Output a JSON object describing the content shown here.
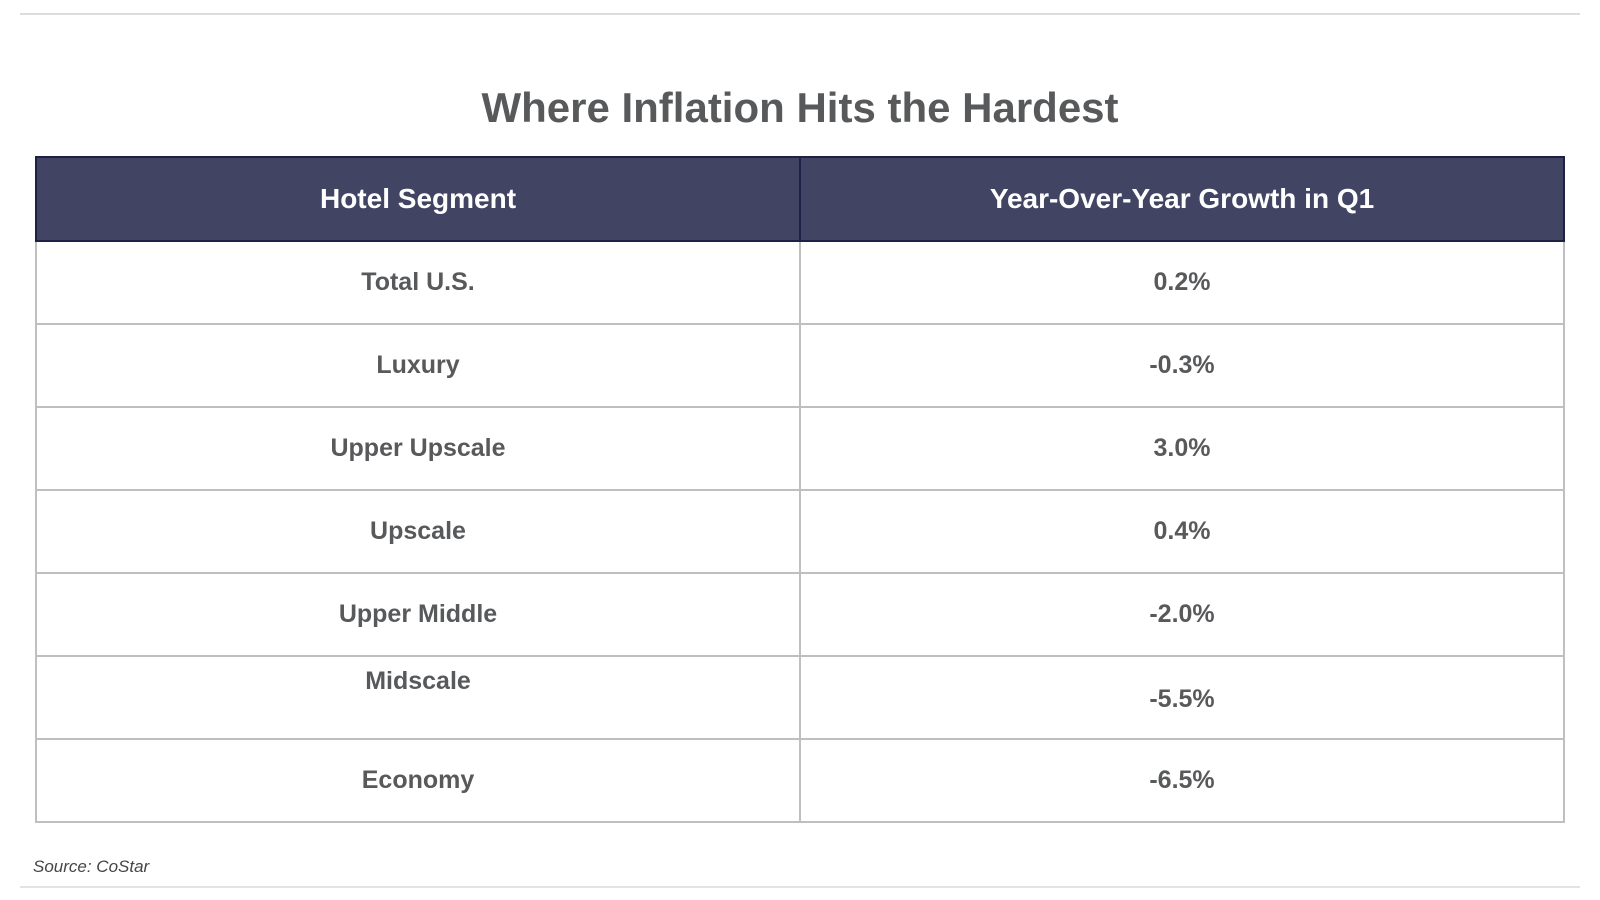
{
  "page": {
    "title": "Where Inflation Hits the Hardest",
    "source": "Source: CoStar"
  },
  "table": {
    "headers": [
      "Hotel Segment",
      "Year-Over-Year Growth in Q1"
    ],
    "rows": [
      {
        "segment": "Total U.S.",
        "growth": "0.2%"
      },
      {
        "segment": "Luxury",
        "growth": "-0.3%"
      },
      {
        "segment": "Upper Upscale",
        "growth": "3.0%"
      },
      {
        "segment": "Upscale",
        "growth": "0.4%"
      },
      {
        "segment": "Upper Middle",
        "growth": "-2.0%"
      },
      {
        "segment": "Midscale",
        "growth": "-5.5%"
      },
      {
        "segment": "Economy",
        "growth": "-6.5%"
      }
    ]
  },
  "chart_data": {
    "type": "table",
    "title": "Where Inflation Hits the Hardest",
    "columns": [
      "Hotel Segment",
      "Year-Over-Year Growth in Q1"
    ],
    "categories": [
      "Total U.S.",
      "Luxury",
      "Upper Upscale",
      "Upscale",
      "Upper Middle",
      "Midscale",
      "Economy"
    ],
    "values_pct": [
      0.2,
      -0.3,
      3.0,
      0.4,
      -2.0,
      -5.5,
      -6.5
    ],
    "source": "Source: CoStar"
  },
  "colors": {
    "header_bg": "#414563",
    "header_border": "#1e2145",
    "body_text": "#58595b",
    "grid_line": "#bfbfbf",
    "rule_line": "#dcdcdc",
    "title_text": "#58595b",
    "source_text": "#454545"
  }
}
